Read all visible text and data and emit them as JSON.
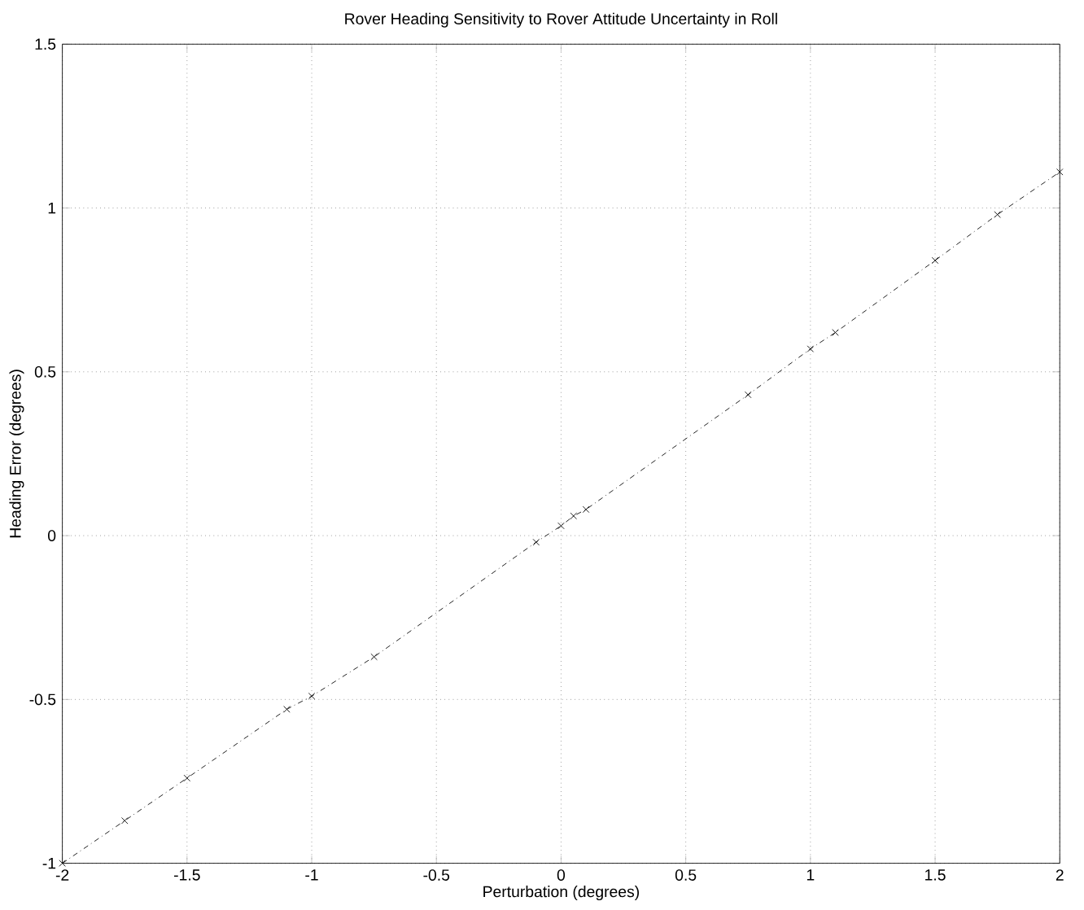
{
  "chart_data": {
    "type": "line",
    "title": "Rover Heading Sensitivity to Rover Attitude Uncertainty in Roll",
    "xlabel": "Perturbation (degrees)",
    "ylabel": "Heading Error (degrees)",
    "x": [
      -2,
      -1.75,
      -1.5,
      -1.1,
      -1,
      -0.75,
      -0.1,
      0,
      0.05,
      0.1,
      0.75,
      1,
      1.1,
      1.5,
      1.75,
      2
    ],
    "series": [
      {
        "color": "#000000",
        "values": [
          -1,
          -0.87,
          -0.74,
          -0.53,
          -0.49,
          -0.37,
          -0.02,
          0.03,
          0.06,
          0.08,
          0.43,
          0.57,
          0.62,
          0.84,
          0.98,
          1.11
        ]
      }
    ],
    "xlim": [
      -2,
      2
    ],
    "ylim": [
      -1,
      1.5
    ],
    "xticks": [
      -2,
      -1.5,
      -1,
      -0.5,
      0,
      0.5,
      1,
      1.5,
      2
    ],
    "yticks": [
      -1,
      -0.5,
      0,
      0.5,
      1,
      1.5
    ],
    "grid": true,
    "marker": "cross",
    "line_style": "dashed"
  }
}
